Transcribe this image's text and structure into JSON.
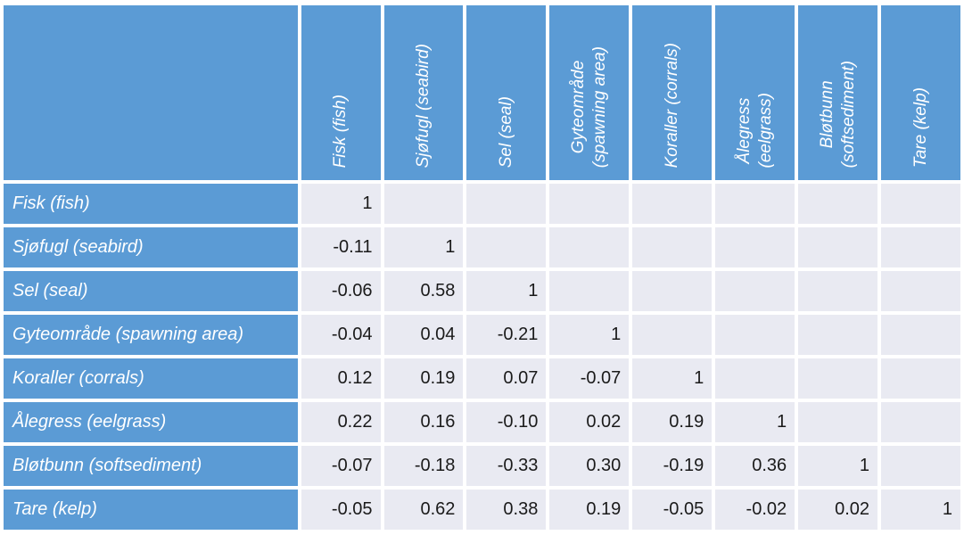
{
  "colors": {
    "header_bg": "#5B9BD5",
    "cell_bg": "#E9EAF2",
    "grid_bg": "#FFFFFF",
    "header_text": "#FFFFFF",
    "value_text": "#1A1A1A"
  },
  "table": {
    "columns": [
      {
        "lines": [
          "Fisk (fish)"
        ]
      },
      {
        "lines": [
          "Sjøfugl (seabird)"
        ]
      },
      {
        "lines": [
          "Sel (seal)"
        ]
      },
      {
        "lines": [
          "Gyteområde",
          "(spawning area)"
        ]
      },
      {
        "lines": [
          "Koraller (corrals)"
        ]
      },
      {
        "lines": [
          "Ålegress",
          "(eelgrass)"
        ]
      },
      {
        "lines": [
          "Bløtbunn",
          "(softsediment)"
        ]
      },
      {
        "lines": [
          "Tare (kelp)"
        ]
      }
    ],
    "rows": [
      {
        "label": "Fisk (fish)",
        "values": [
          "1",
          "",
          "",
          "",
          "",
          "",
          "",
          ""
        ]
      },
      {
        "label": "Sjøfugl (seabird)",
        "values": [
          "-0.11",
          "1",
          "",
          "",
          "",
          "",
          "",
          ""
        ]
      },
      {
        "label": "Sel (seal)",
        "values": [
          "-0.06",
          "0.58",
          "1",
          "",
          "",
          "",
          "",
          ""
        ]
      },
      {
        "label": "Gyteområde (spawning area)",
        "values": [
          "-0.04",
          "0.04",
          "-0.21",
          "1",
          "",
          "",
          "",
          ""
        ]
      },
      {
        "label": "Koraller (corrals)",
        "values": [
          "0.12",
          "0.19",
          "0.07",
          "-0.07",
          "1",
          "",
          "",
          ""
        ]
      },
      {
        "label": "Ålegress (eelgrass)",
        "values": [
          "0.22",
          "0.16",
          "-0.10",
          "0.02",
          "0.19",
          "1",
          "",
          ""
        ]
      },
      {
        "label": "Bløtbunn (softsediment)",
        "values": [
          "-0.07",
          "-0.18",
          "-0.33",
          "0.30",
          "-0.19",
          "0.36",
          "1",
          ""
        ]
      },
      {
        "label": "Tare (kelp)",
        "values": [
          "-0.05",
          "0.62",
          "0.38",
          "0.19",
          "-0.05",
          "-0.02",
          "0.02",
          "1"
        ]
      }
    ]
  },
  "chart_data": {
    "type": "table",
    "title": "",
    "row_labels": [
      "Fisk (fish)",
      "Sjøfugl (seabird)",
      "Sel (seal)",
      "Gyteområde (spawning area)",
      "Koraller (corrals)",
      "Ålegress (eelgrass)",
      "Bløtbunn (softsediment)",
      "Tare (kelp)"
    ],
    "column_labels": [
      "Fisk (fish)",
      "Sjøfugl (seabird)",
      "Sel (seal)",
      "Gyteområde (spawning area)",
      "Koraller (corrals)",
      "Ålegress (eelgrass)",
      "Bløtbunn (softsediment)",
      "Tare (kelp)"
    ],
    "matrix": [
      [
        1,
        null,
        null,
        null,
        null,
        null,
        null,
        null
      ],
      [
        -0.11,
        1,
        null,
        null,
        null,
        null,
        null,
        null
      ],
      [
        -0.06,
        0.58,
        1,
        null,
        null,
        null,
        null,
        null
      ],
      [
        -0.04,
        0.04,
        -0.21,
        1,
        null,
        null,
        null,
        null
      ],
      [
        0.12,
        0.19,
        0.07,
        -0.07,
        1,
        null,
        null,
        null
      ],
      [
        0.22,
        0.16,
        -0.1,
        0.02,
        0.19,
        1,
        null,
        null
      ],
      [
        -0.07,
        -0.18,
        -0.33,
        0.3,
        -0.19,
        0.36,
        1,
        null
      ],
      [
        -0.05,
        0.62,
        0.38,
        0.19,
        -0.05,
        -0.02,
        0.02,
        1
      ]
    ],
    "legend_position": "none",
    "grid": true
  }
}
